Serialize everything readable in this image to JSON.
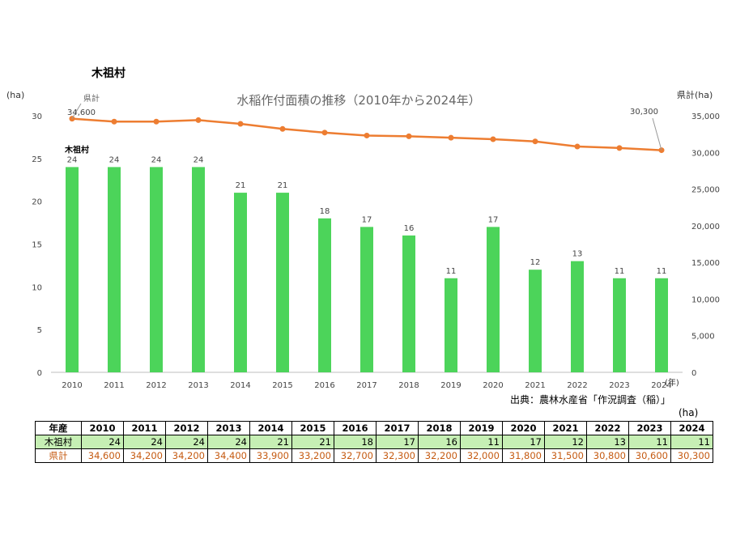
{
  "heading": "木祖村",
  "source": "出典：農林水産省「作況調査（稲）」",
  "table_unit": "(ha)",
  "chart_data": {
    "type": "bar",
    "title": "水稲作付面積の推移（2010年から2024年）",
    "categories": [
      "2010",
      "2011",
      "2012",
      "2013",
      "2014",
      "2015",
      "2016",
      "2017",
      "2018",
      "2019",
      "2020",
      "2021",
      "2022",
      "2023",
      "2024"
    ],
    "x_unit": "(年)",
    "left_axis": {
      "label": "(ha)",
      "range": [
        0,
        30
      ],
      "ticks": [
        0,
        5,
        10,
        15,
        20,
        25,
        30
      ]
    },
    "right_axis": {
      "label": "県計(ha)",
      "range": [
        0,
        35000
      ],
      "ticks": [
        "0",
        "5,000",
        "10,000",
        "15,000",
        "20,000",
        "25,000",
        "30,000",
        "35,000"
      ]
    },
    "series": [
      {
        "name": "木祖村",
        "type": "bar",
        "axis": "left",
        "color": "#4cd45a",
        "values": [
          24,
          24,
          24,
          24,
          21,
          21,
          18,
          17,
          16,
          11,
          17,
          12,
          13,
          11,
          11
        ]
      },
      {
        "name": "県計",
        "type": "line",
        "axis": "right",
        "color": "#ed7d31",
        "values": [
          34600,
          34200,
          34200,
          34400,
          33900,
          33200,
          32700,
          32300,
          32200,
          32000,
          31800,
          31500,
          30800,
          30600,
          30300
        ]
      }
    ],
    "annotations": {
      "first_line_label": "34,600",
      "last_line_label": "30,300"
    }
  },
  "table": {
    "header_label": "年産",
    "years": [
      "2010",
      "2011",
      "2012",
      "2013",
      "2014",
      "2015",
      "2016",
      "2017",
      "2018",
      "2019",
      "2020",
      "2021",
      "2022",
      "2023",
      "2024"
    ],
    "rows": [
      {
        "label": "木祖村",
        "values": [
          "24",
          "24",
          "24",
          "24",
          "21",
          "21",
          "18",
          "17",
          "16",
          "11",
          "17",
          "12",
          "13",
          "11",
          "11"
        ]
      },
      {
        "label": "県計",
        "values": [
          "34,600",
          "34,200",
          "34,200",
          "34,400",
          "33,900",
          "33,200",
          "32,700",
          "32,300",
          "32,200",
          "32,000",
          "31,800",
          "31,500",
          "30,800",
          "30,600",
          "30,300"
        ]
      }
    ]
  }
}
